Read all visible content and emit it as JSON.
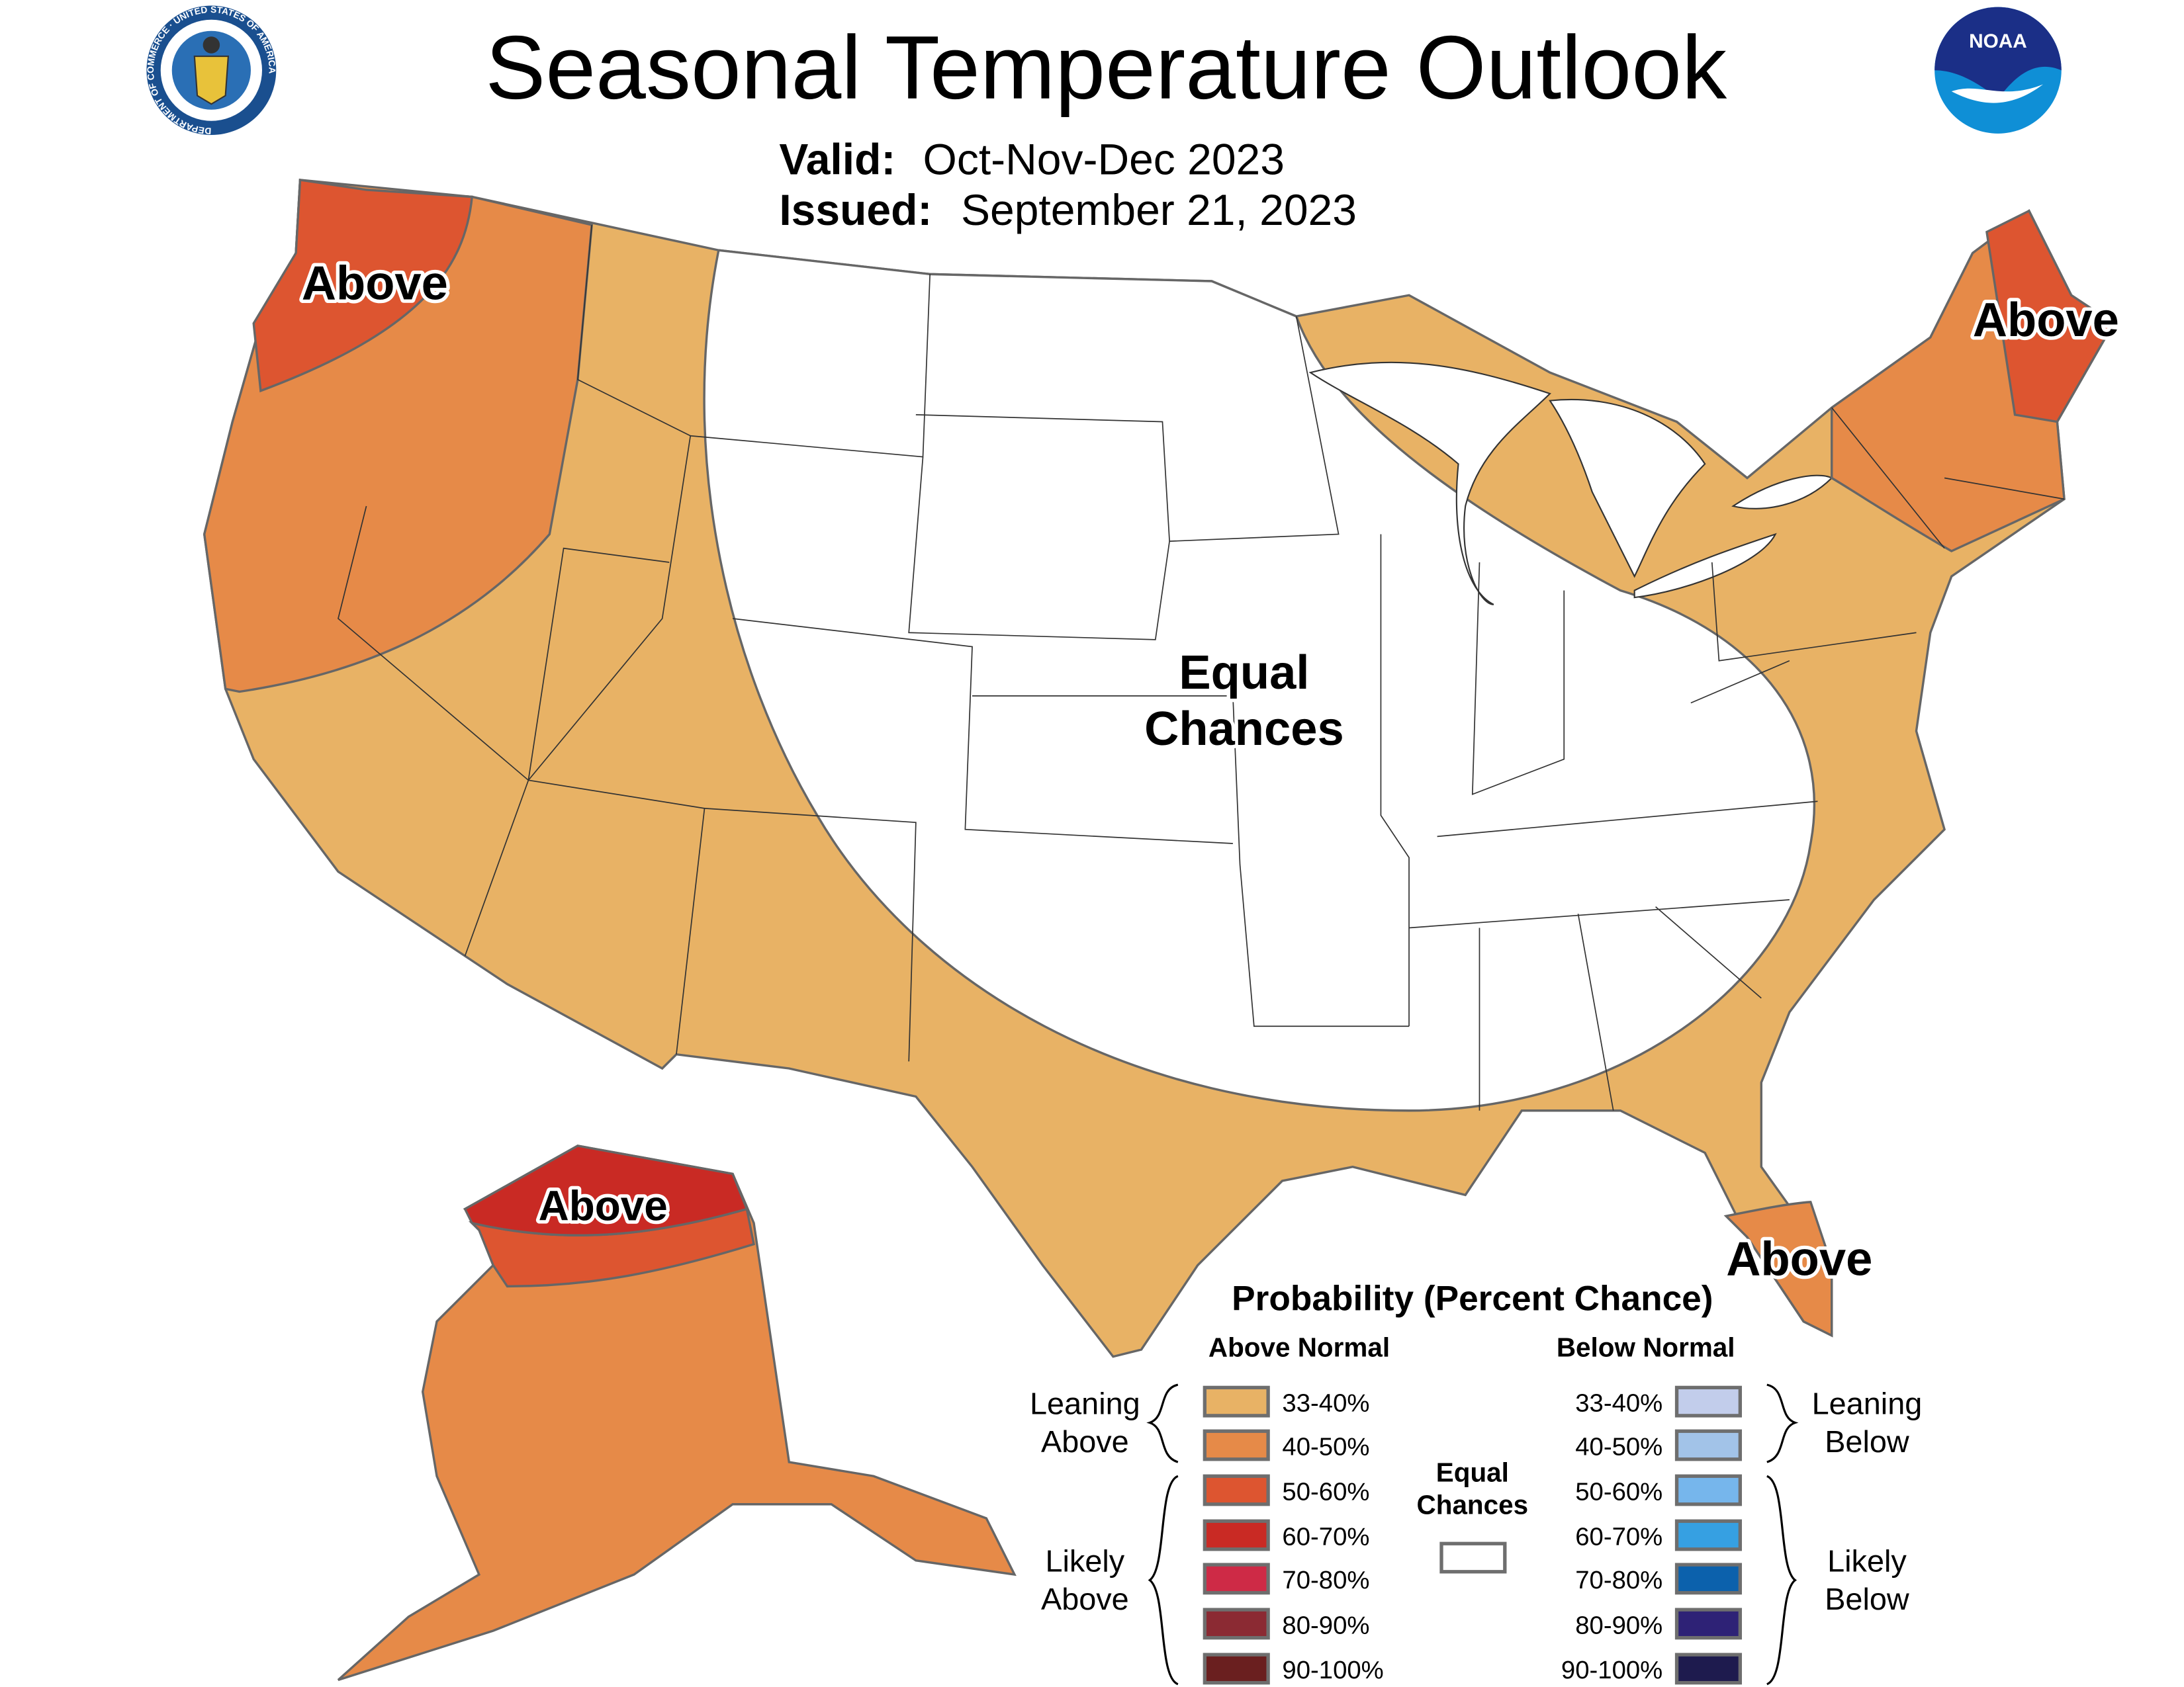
{
  "header": {
    "title": "Seasonal Temperature Outlook",
    "valid_label": "Valid:",
    "valid_value": "Oct-Nov-Dec 2023",
    "issued_label": "Issued:",
    "issued_value": "September 21, 2023",
    "left_logo": "US Department of Commerce seal",
    "left_logo_text": "DEPARTMENT OF COMMERCE · UNITED STATES OF AMERICA",
    "right_logo": "NOAA logo",
    "right_logo_text": "NOAA"
  },
  "map": {
    "labels": {
      "northwest": "Above",
      "northeast": "Above",
      "alaska": "Above",
      "florida": "Above",
      "center_line1": "Equal",
      "center_line2": "Chances"
    },
    "region_categories": {
      "washington_coast": "50-60% Above",
      "pacific_northwest_california": "40-50% Above",
      "west_south_east_rim": "33-40% Above",
      "central_east": "Equal Chances",
      "new_england": "40-50% Above",
      "maine": "50-60% Above",
      "south_florida": "40-50% Above",
      "alaska_main": "40-50% Above",
      "alaska_north_strip": "50-60% Above",
      "alaska_north_slope": "60-70% Above"
    }
  },
  "legend": {
    "title": "Probability (Percent Chance)",
    "above_header": "Above Normal",
    "below_header": "Below Normal",
    "leaning_above": [
      "Leaning",
      "Above"
    ],
    "likely_above": [
      "Likely",
      "Above"
    ],
    "leaning_below": [
      "Leaning",
      "Below"
    ],
    "likely_below": [
      "Likely",
      "Below"
    ],
    "equal": [
      "Equal",
      "Chances"
    ],
    "equal_color": "#ffffff",
    "above": [
      {
        "label": "33-40%",
        "color": "#E8B265"
      },
      {
        "label": "40-50%",
        "color": "#E68A48"
      },
      {
        "label": "50-60%",
        "color": "#DD5530"
      },
      {
        "label": "60-70%",
        "color": "#C92A24"
      },
      {
        "label": "70-80%",
        "color": "#CE2A46"
      },
      {
        "label": "80-90%",
        "color": "#8B2A33"
      },
      {
        "label": "90-100%",
        "color": "#6A1F1F"
      }
    ],
    "below": [
      {
        "label": "33-40%",
        "color": "#C2CDEB"
      },
      {
        "label": "40-50%",
        "color": "#A2C3E8"
      },
      {
        "label": "50-60%",
        "color": "#76B6EC"
      },
      {
        "label": "60-70%",
        "color": "#36A0E2"
      },
      {
        "label": "70-80%",
        "color": "#0C61AC"
      },
      {
        "label": "80-90%",
        "color": "#2E2276"
      },
      {
        "label": "90-100%",
        "color": "#1E1B4E"
      }
    ]
  }
}
